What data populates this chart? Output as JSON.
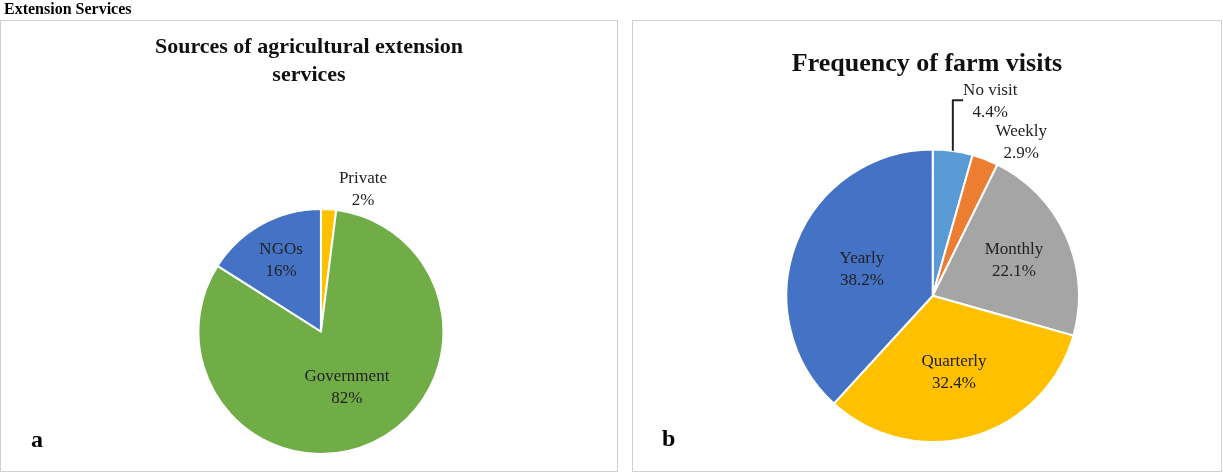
{
  "chart_data": [
    {
      "type": "pie",
      "title": "Sources of agricultural extension services",
      "categories": [
        "Private",
        "Government",
        "NGOs"
      ],
      "values": [
        2,
        82,
        16
      ],
      "colors": [
        "#ffc000",
        "#70ad47",
        "#4472c4"
      ],
      "value_labels": [
        "2%",
        "82%",
        "16%"
      ],
      "annotations": [
        "Extension Services",
        "a"
      ]
    },
    {
      "type": "pie",
      "title": "Frequency of farm visits",
      "categories": [
        "No visit",
        "Weekly",
        "Monthly",
        "Quarterly",
        "Yearly"
      ],
      "values": [
        4.4,
        2.9,
        22.1,
        32.4,
        38.2
      ],
      "colors": [
        "#5b9bd5",
        "#ed7d31",
        "#a5a5a5",
        "#ffc000",
        "#4472c4"
      ],
      "value_labels": [
        "4.4%",
        "2.9%",
        "22.1%",
        "32.4%",
        "38.2%"
      ],
      "annotations": [
        "b"
      ]
    }
  ]
}
